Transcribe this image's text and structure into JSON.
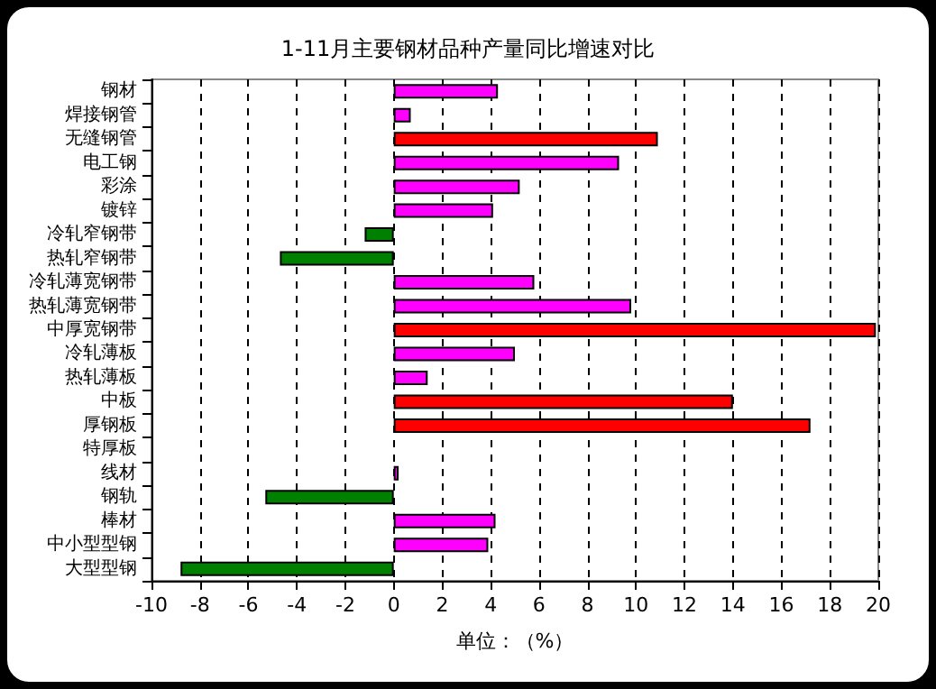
{
  "chart_data": {
    "type": "bar",
    "orientation": "horizontal",
    "title": "1-11月主要钢材品种产量同比增速对比",
    "xlabel": "单位：（%）",
    "categories": [
      "钢材",
      "焊接钢管",
      "无缝钢管",
      "电工钢",
      "彩涂",
      "镀锌",
      "冷轧窄钢带",
      "热轧窄钢带",
      "冷轧薄宽钢带",
      "热轧薄宽钢带",
      "中厚宽钢带",
      "冷轧薄板",
      "热轧薄板",
      "中板",
      "厚钢板",
      "特厚板",
      "线材",
      "钢轨",
      "棒材",
      "中小型型钢",
      "大型型钢"
    ],
    "values": [
      4.3,
      0.7,
      10.9,
      9.3,
      5.2,
      4.1,
      -1.2,
      -4.7,
      5.8,
      9.8,
      19.9,
      5.0,
      1.4,
      14.0,
      17.2,
      null,
      0.2,
      -5.3,
      4.2,
      3.9,
      -8.8
    ],
    "colors": [
      "#ff00ff",
      "#ff00ff",
      "#ff0000",
      "#ff00ff",
      "#ff00ff",
      "#ff00ff",
      "#008000",
      "#008000",
      "#ff00ff",
      "#ff00ff",
      "#ff0000",
      "#ff00ff",
      "#ff00ff",
      "#ff0000",
      "#ff0000",
      "#ff00ff",
      "#ff00ff",
      "#008000",
      "#ff00ff",
      "#ff00ff",
      "#008000"
    ],
    "xlim": [
      -10,
      20
    ],
    "xticks": [
      -10,
      -8,
      -6,
      -4,
      -2,
      0,
      2,
      4,
      6,
      8,
      10,
      12,
      14,
      16,
      18,
      20
    ],
    "grid": "x"
  }
}
